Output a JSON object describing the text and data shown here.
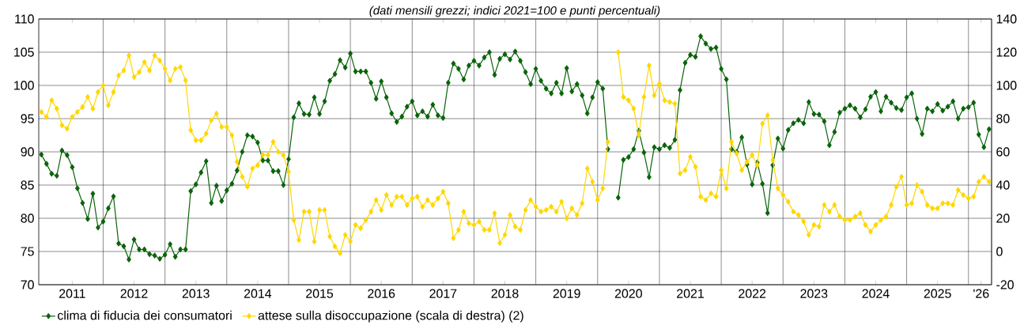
{
  "chart_data": {
    "type": "line",
    "subtitle": "(dati mensili grezzi; indici 2021=100 e punti percentuali)",
    "x": [
      "2011-01",
      "2011-02",
      "2011-03",
      "2011-04",
      "2011-05",
      "2011-06",
      "2011-07",
      "2011-08",
      "2011-09",
      "2011-10",
      "2011-11",
      "2011-12",
      "2012-01",
      "2012-02",
      "2012-03",
      "2012-04",
      "2012-05",
      "2012-06",
      "2012-07",
      "2012-08",
      "2012-09",
      "2012-10",
      "2012-11",
      "2012-12",
      "2013-01",
      "2013-02",
      "2013-03",
      "2013-04",
      "2013-05",
      "2013-06",
      "2013-07",
      "2013-08",
      "2013-09",
      "2013-10",
      "2013-11",
      "2013-12",
      "2014-01",
      "2014-02",
      "2014-03",
      "2014-04",
      "2014-05",
      "2014-06",
      "2014-07",
      "2014-08",
      "2014-09",
      "2014-10",
      "2014-11",
      "2014-12",
      "2015-01",
      "2015-02",
      "2015-03",
      "2015-04",
      "2015-05",
      "2015-06",
      "2015-07",
      "2015-08",
      "2015-09",
      "2015-10",
      "2015-11",
      "2015-12",
      "2016-01",
      "2016-02",
      "2016-03",
      "2016-04",
      "2016-05",
      "2016-06",
      "2016-07",
      "2016-08",
      "2016-09",
      "2016-10",
      "2016-11",
      "2016-12",
      "2017-01",
      "2017-02",
      "2017-03",
      "2017-04",
      "2017-05",
      "2017-06",
      "2017-07",
      "2017-08",
      "2017-09",
      "2017-10",
      "2017-11",
      "2017-12",
      "2018-01",
      "2018-02",
      "2018-03",
      "2018-04",
      "2018-05",
      "2018-06",
      "2018-07",
      "2018-08",
      "2018-09",
      "2018-10",
      "2018-11",
      "2018-12",
      "2019-01",
      "2019-02",
      "2019-03",
      "2019-04",
      "2019-05",
      "2019-06",
      "2019-07",
      "2019-08",
      "2019-09",
      "2019-10",
      "2019-11",
      "2019-12",
      "2020-01",
      "2020-02",
      "2020-03",
      "2020-04",
      "2020-05",
      "2020-06",
      "2020-07",
      "2020-08",
      "2020-09",
      "2020-10",
      "2020-11",
      "2020-12",
      "2021-01",
      "2021-02",
      "2021-03",
      "2021-04",
      "2021-05",
      "2021-06",
      "2021-07",
      "2021-08",
      "2021-09",
      "2021-10",
      "2021-11",
      "2021-12",
      "2022-01",
      "2022-02",
      "2022-03",
      "2022-04",
      "2022-05",
      "2022-06",
      "2022-07",
      "2022-08",
      "2022-09",
      "2022-10",
      "2022-11",
      "2022-12",
      "2023-01",
      "2023-02",
      "2023-03",
      "2023-04",
      "2023-05",
      "2023-06",
      "2023-07",
      "2023-08",
      "2023-09",
      "2023-10",
      "2023-11",
      "2023-12",
      "2024-01",
      "2024-02",
      "2024-03",
      "2024-04",
      "2024-05",
      "2024-06",
      "2024-07",
      "2024-08",
      "2024-09",
      "2024-10",
      "2024-11",
      "2024-12",
      "2025-01",
      "2025-02",
      "2025-03",
      "2025-04",
      "2025-05",
      "2025-06",
      "2025-07",
      "2025-08",
      "2025-09",
      "2025-10",
      "2025-11",
      "2025-12",
      "2026-01",
      "2026-02",
      "2026-03",
      "2026-04",
      "2026-05"
    ],
    "series": [
      {
        "name": "clima di fiducia dei consumatori",
        "color": "#0a640a",
        "values": [
          89.6,
          88.2,
          86.7,
          86.4,
          90.2,
          89.5,
          87.7,
          84.5,
          82.3,
          79.9,
          83.7,
          78.6,
          79.5,
          81.5,
          83.3,
          76.2,
          75.8,
          73.8,
          76.8,
          75.3,
          75.3,
          74.6,
          74.4,
          73.9,
          74.5,
          76.1,
          74.2,
          75.3,
          75.3,
          84.1,
          85.1,
          86.9,
          88.6,
          82.3,
          84.9,
          82.6,
          84.2,
          85.2,
          87.2,
          90.0,
          92.5,
          92.3,
          91.4,
          88.7,
          88.7,
          87.1,
          87.1,
          85.0,
          88.9,
          95.2,
          97.3,
          95.7,
          95.6,
          98.2,
          95.7,
          97.6,
          100.7,
          101.7,
          103.8,
          102.7,
          104.8,
          102.1,
          102.1,
          102.1,
          100.4,
          98.0,
          100.6,
          98.2,
          95.8,
          94.5,
          95.3,
          96.8,
          97.6,
          95.5,
          96.1,
          95.3,
          97.1,
          95.5,
          95.1,
          100.4,
          103.3,
          102.5,
          100.9,
          103.0,
          103.7,
          103.0,
          104.2,
          105.0,
          101.6,
          104.0,
          104.7,
          103.9,
          105.1,
          103.7,
          102.0,
          100.2,
          102.5,
          100.7,
          99.5,
          98.8,
          100.4,
          98.8,
          102.6,
          99.1,
          100.2,
          98.5,
          95.8,
          98.2,
          100.5,
          99.5,
          90.4,
          null,
          83.1,
          88.8,
          89.2,
          90.4,
          93.2,
          89.9,
          86.2,
          90.7,
          90.4,
          91.0,
          90.6,
          91.8,
          99.3,
          103.4,
          104.6,
          104.3,
          107.4,
          106.3,
          105.5,
          105.7,
          102.5,
          100.9,
          90.4,
          90.0,
          92.2,
          88.1,
          85.1,
          88.4,
          85.2,
          80.8,
          88.0,
          92.0,
          90.5,
          93.3,
          94.3,
          94.8,
          94.3,
          97.5,
          95.7,
          95.6,
          94.6,
          91.0,
          93.0,
          95.9,
          96.5,
          97.0,
          96.5,
          95.2,
          96.4,
          98.3,
          99.0,
          96.1,
          98.3,
          97.4,
          96.6,
          96.3,
          98.2,
          98.8,
          95.0,
          92.7,
          96.5,
          96.1,
          97.2,
          96.2,
          96.8,
          97.6,
          95.0,
          96.5,
          96.7,
          97.4,
          92.6,
          90.7,
          93.4
        ]
      },
      {
        "name": "attese sulla disoccupazione (scala di destra) (2)",
        "color": "#ffd700",
        "axis": "y2",
        "values": [
          84,
          81,
          91,
          86,
          76,
          74,
          81,
          84,
          87,
          93,
          86,
          96,
          100,
          88,
          96,
          106,
          109,
          118,
          105,
          108,
          114,
          109,
          118,
          115,
          110,
          103,
          110,
          111,
          103,
          73,
          67,
          67,
          71,
          79,
          83,
          75,
          75,
          70,
          54,
          45,
          39,
          50,
          52,
          58,
          58,
          66,
          60,
          58,
          48,
          19,
          7,
          24,
          24,
          6,
          25,
          25,
          9,
          3,
          -1,
          10,
          6,
          16,
          14,
          19,
          24,
          31,
          25,
          34,
          28,
          33,
          33,
          28,
          32,
          33,
          27,
          31,
          28,
          32,
          36,
          29,
          8,
          13,
          24,
          17,
          16,
          18,
          13,
          13,
          23,
          5,
          10,
          22,
          15,
          13,
          25,
          31,
          27,
          24,
          25,
          27,
          24,
          30,
          20,
          26,
          22,
          29,
          50,
          42,
          31,
          38,
          66,
          null,
          120,
          93,
          91,
          86,
          70,
          93,
          112,
          94,
          101,
          91,
          90,
          89,
          47,
          49,
          57,
          51,
          33,
          31,
          35,
          33,
          49,
          38,
          66,
          59,
          49,
          54,
          58,
          52,
          77,
          82,
          55,
          38,
          34,
          30,
          24,
          22,
          18,
          10,
          16,
          15,
          28,
          24,
          28,
          21,
          19,
          19,
          21,
          23,
          16,
          12,
          16,
          19,
          21,
          28,
          39,
          45,
          28,
          29,
          40,
          36,
          28,
          26,
          26,
          29,
          29,
          28,
          37,
          34,
          32,
          33,
          42,
          45,
          42
        ]
      }
    ],
    "xlim": [
      "2010-12-16",
      "2026-05-16"
    ],
    "xticks": [
      {
        "value": "2011-07-01",
        "label": "2011"
      },
      {
        "value": "2012-07-01",
        "label": "2012"
      },
      {
        "value": "2013-07-01",
        "label": "2013"
      },
      {
        "value": "2014-07-01",
        "label": "2014"
      },
      {
        "value": "2015-07-01",
        "label": "2015"
      },
      {
        "value": "2016-07-01",
        "label": "2016"
      },
      {
        "value": "2017-07-01",
        "label": "2017"
      },
      {
        "value": "2018-07-01",
        "label": "2018"
      },
      {
        "value": "2019-07-01",
        "label": "2019"
      },
      {
        "value": "2020-07-01",
        "label": "2020"
      },
      {
        "value": "2021-07-01",
        "label": "2021"
      },
      {
        "value": "2022-07-01",
        "label": "2022"
      },
      {
        "value": "2023-07-01",
        "label": "2023"
      },
      {
        "value": "2024-07-01",
        "label": "2024"
      },
      {
        "value": "2025-07-01",
        "label": "2025"
      },
      {
        "value": "2026-03-15",
        "label": "'26"
      },
      {
        "value": "2012",
        "label": null
      },
      {
        "value": "2013",
        "label": null
      },
      {
        "value": "2014",
        "label": null
      },
      {
        "value": "2015",
        "label": null
      },
      {
        "value": "2016",
        "label": null
      },
      {
        "value": "2017",
        "label": null
      },
      {
        "value": "2018",
        "label": null
      },
      {
        "value": "2019",
        "label": null
      },
      {
        "value": "2020",
        "label": null
      },
      {
        "value": "2021",
        "label": null
      },
      {
        "value": "2022",
        "label": null
      },
      {
        "value": "2023",
        "label": null
      },
      {
        "value": "2024",
        "label": null
      },
      {
        "value": "2025",
        "label": null
      },
      {
        "value": "2026",
        "label": null
      }
    ],
    "ylim": [
      70,
      110
    ],
    "yticks": [
      70,
      75,
      80,
      85,
      90,
      95,
      100,
      105,
      110
    ],
    "y2lim": [
      -20,
      140
    ],
    "y2ticks": [
      -20,
      0,
      20,
      40,
      60,
      80,
      100,
      120,
      140
    ],
    "grid": true,
    "legend": "bottom",
    "marker": "diamond",
    "line_style": "solid"
  }
}
